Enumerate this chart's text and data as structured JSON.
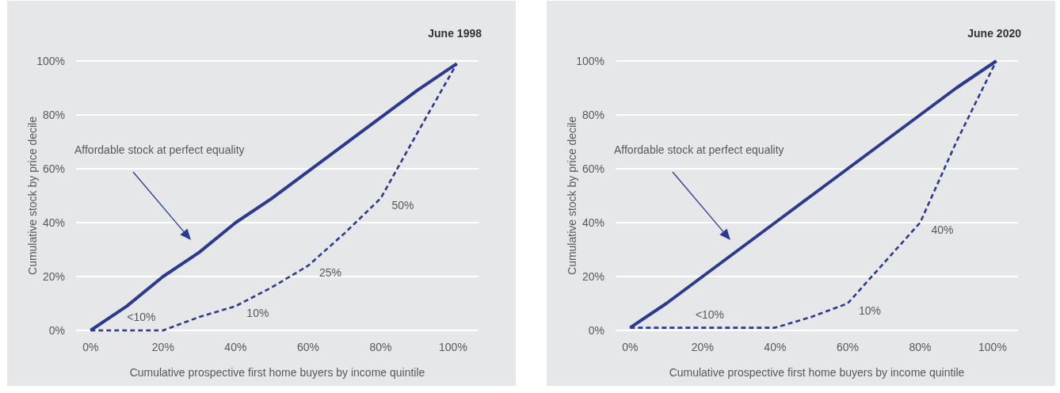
{
  "chart_data": [
    {
      "type": "line",
      "title": "June 1998",
      "xlabel": "Cumulative prospective first home buyers by income quintile",
      "ylabel": "Cumulative stock by price decile",
      "x": [
        0,
        10,
        20,
        30,
        40,
        50,
        60,
        70,
        80,
        90,
        101
      ],
      "series": [
        {
          "color": "#2b3990",
          "line_style": "solid",
          "values": [
            0,
            9,
            20,
            29,
            40,
            49,
            59,
            69,
            79,
            89,
            99
          ]
        },
        {
          "color": "#2b3990",
          "line_style": "dashed",
          "values": [
            0,
            0,
            0,
            5,
            9,
            16,
            24,
            36,
            49,
            73,
            99
          ]
        }
      ],
      "xlim": [
        -4,
        107
      ],
      "ylim": [
        0,
        100
      ],
      "xticks": [
        {
          "value": 0,
          "label": "0%"
        },
        {
          "value": 20,
          "label": "20%"
        },
        {
          "value": 40,
          "label": "40%"
        },
        {
          "value": 60,
          "label": "60%"
        },
        {
          "value": 80,
          "label": "80%"
        },
        {
          "value": 100,
          "label": "100%"
        }
      ],
      "yticks": [
        {
          "value": 0,
          "label": "0%"
        },
        {
          "value": 20,
          "label": "20%"
        },
        {
          "value": 40,
          "label": "40%"
        },
        {
          "value": 60,
          "label": "60%"
        },
        {
          "value": 80,
          "label": "80%"
        },
        {
          "value": 100,
          "label": "100%"
        }
      ],
      "grid": "y",
      "annotations": [
        "Affordable stock at perfect equality",
        {
          "text": "<10%",
          "x": 14,
          "y": 0
        },
        {
          "text": "10%",
          "x": 40,
          "y": 9
        },
        {
          "text": "25%",
          "x": 60,
          "y": 24
        },
        {
          "text": "50%",
          "x": 80,
          "y": 49
        }
      ]
    },
    {
      "type": "line",
      "title": "June 2020",
      "xlabel": "Cumulative prospective first home buyers by income quintile",
      "ylabel": "Cumulative stock by price decile",
      "x": [
        0,
        10,
        20,
        30,
        40,
        50,
        60,
        70,
        80,
        90,
        101
      ],
      "series": [
        {
          "color": "#2b3990",
          "line_style": "solid",
          "values": [
            1,
            10,
            20,
            30,
            40,
            50,
            60,
            70,
            80,
            90,
            100
          ]
        },
        {
          "color": "#2b3990",
          "line_style": "dashed",
          "values": [
            1,
            1,
            1,
            1,
            1,
            5,
            10,
            25,
            40,
            70,
            100
          ]
        }
      ],
      "xlim": [
        -4,
        107
      ],
      "ylim": [
        0,
        100
      ],
      "xticks": [
        {
          "value": 0,
          "label": "0%"
        },
        {
          "value": 20,
          "label": "20%"
        },
        {
          "value": 40,
          "label": "40%"
        },
        {
          "value": 60,
          "label": "60%"
        },
        {
          "value": 80,
          "label": "80%"
        },
        {
          "value": 100,
          "label": "100%"
        }
      ],
      "yticks": [
        {
          "value": 0,
          "label": "0%"
        },
        {
          "value": 20,
          "label": "20%"
        },
        {
          "value": 40,
          "label": "40%"
        },
        {
          "value": 60,
          "label": "60%"
        },
        {
          "value": 80,
          "label": "80%"
        },
        {
          "value": 100,
          "label": "100%"
        }
      ],
      "grid": "y",
      "annotations": [
        "Affordable stock at perfect equality",
        {
          "text": "<10%",
          "x": 22,
          "y": 1
        },
        {
          "text": "10%",
          "x": 60,
          "y": 10
        },
        {
          "text": "40%",
          "x": 80,
          "y": 40
        }
      ]
    }
  ]
}
